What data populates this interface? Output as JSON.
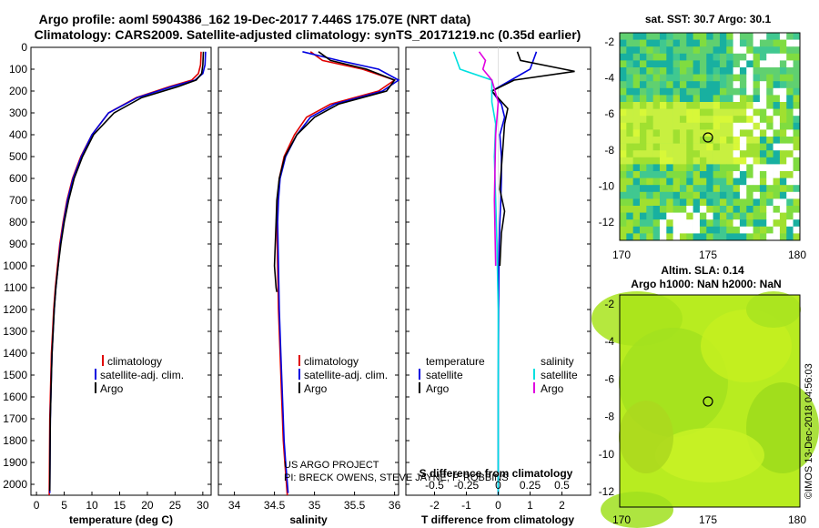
{
  "header": {
    "line1": "Argo profile: aoml 5904386_162 19-Dec-2017 7.446S 175.07E (NRT data)",
    "line2": "Climatology: CARS2009. Satellite-adjusted climatology: synTS_20171219.nc (0.35d earlier)"
  },
  "colors": {
    "climatology": "#e00000",
    "satellite": "#0000e0",
    "argo": "#000000",
    "sat_salinity": "#00e0e0",
    "argo_salinity": "#e000e0"
  },
  "depth_ticks": [
    "0",
    "100",
    "200",
    "300",
    "400",
    "500",
    "600",
    "700",
    "800",
    "900",
    "1000",
    "1100",
    "1200",
    "1300",
    "1400",
    "1500",
    "1600",
    "1700",
    "1800",
    "1900",
    "2000"
  ],
  "legends": {
    "panel1": [
      "climatology",
      "satellite-adj. clim.",
      "Argo"
    ],
    "panel2": [
      "climatology",
      "satellite-adj. clim.",
      "Argo"
    ],
    "panel3_left_title": "temperature",
    "panel3_left": [
      "satellite",
      "Argo"
    ],
    "panel3_right_title": "salinity",
    "panel3_right": [
      "satellite",
      "Argo"
    ]
  },
  "credit": {
    "line1": "US ARGO PROJECT",
    "line2": "PI: BRECK OWENS, STEVE JAYNE, P. ROBBINS"
  },
  "map1": {
    "title": "sat. SST: 30.7 Argo: 30.1"
  },
  "map2": {
    "title1": "Altim. SLA: 0.14",
    "title2": "Argo h1000: NaN h2000: NaN"
  },
  "map_ticks": {
    "x": [
      "170",
      "175",
      "180"
    ],
    "y1": [
      "-2",
      "-4",
      "-6",
      "-8",
      "-10",
      "-12"
    ],
    "y2": [
      "-2",
      "-4",
      "-6",
      "-8",
      "-10",
      "-12"
    ]
  },
  "timestamp": "©IMOS 13-Dec-2018 04:56:03",
  "chart_data": [
    {
      "type": "line",
      "title": "",
      "xlabel": "temperature (deg C)",
      "ylabel": "",
      "xlim": [
        -1,
        31.5
      ],
      "ylim": [
        2050,
        0
      ],
      "xticks": [
        "0",
        "5",
        "10",
        "15",
        "20",
        "25",
        "30"
      ],
      "series": [
        {
          "name": "climatology",
          "color": "#e00000",
          "x": [
            29.7,
            29.6,
            29.2,
            28,
            24,
            18,
            13,
            10,
            8,
            6.5,
            5.5,
            4.8,
            4.2,
            3.8,
            3.4,
            3.1,
            2.9,
            2.7,
            2.6,
            2.5,
            2.4,
            2.3
          ],
          "y": [
            20,
            80,
            120,
            150,
            180,
            230,
            300,
            400,
            500,
            600,
            700,
            800,
            900,
            1000,
            1100,
            1200,
            1300,
            1400,
            1500,
            1600,
            1700,
            2050
          ]
        },
        {
          "name": "satellite-adj. clim.",
          "color": "#0000e0",
          "x": [
            30.5,
            30.4,
            30.0,
            28.6,
            24.4,
            18.2,
            13,
            10,
            8.1,
            6.6,
            5.6,
            4.9,
            4.3,
            3.9,
            3.5,
            3.2,
            3,
            2.8,
            2.7,
            2.6,
            2.5,
            2.4
          ],
          "y": [
            20,
            80,
            120,
            150,
            180,
            230,
            300,
            400,
            500,
            600,
            700,
            800,
            900,
            1000,
            1100,
            1200,
            1300,
            1400,
            1500,
            1600,
            1700,
            2040
          ]
        },
        {
          "name": "Argo",
          "color": "#000000",
          "x": [
            30.1,
            30.0,
            29.8,
            28.8,
            25.5,
            19,
            14,
            10.3,
            8.3,
            6.8,
            5.8,
            5,
            4.4,
            3.9,
            3.5,
            3.2,
            3,
            2.8,
            2.7,
            2.6,
            2.5,
            2.4
          ],
          "y": [
            20,
            80,
            120,
            150,
            180,
            230,
            300,
            400,
            500,
            600,
            700,
            800,
            900,
            1000,
            1100,
            1200,
            1300,
            1400,
            1500,
            1600,
            1700,
            2030
          ]
        }
      ]
    },
    {
      "type": "line",
      "title": "",
      "xlabel": "salinity",
      "ylabel": "",
      "xlim": [
        33.8,
        36.05
      ],
      "ylim": [
        2050,
        0
      ],
      "xticks": [
        "34",
        "34.5",
        "35",
        "35.5",
        "36"
      ],
      "series": [
        {
          "name": "climatology",
          "color": "#e00000",
          "x": [
            34.95,
            35.1,
            35.6,
            36.0,
            35.8,
            35.2,
            34.9,
            34.75,
            34.62,
            34.56,
            34.54,
            34.53,
            34.54,
            34.55,
            34.57,
            34.59,
            34.61,
            34.63,
            34.66
          ],
          "y": [
            20,
            60,
            100,
            150,
            200,
            260,
            320,
            400,
            500,
            600,
            700,
            800,
            1000,
            1200,
            1400,
            1600,
            1800,
            1900,
            2050
          ]
        },
        {
          "name": "satellite-adj. clim.",
          "color": "#0000e0",
          "x": [
            34.85,
            35.3,
            35.8,
            36.05,
            35.85,
            35.25,
            34.95,
            34.78,
            34.64,
            34.57,
            34.55,
            34.54,
            34.55,
            34.56,
            34.58,
            34.6,
            34.62,
            34.64,
            34.67
          ],
          "y": [
            20,
            60,
            100,
            150,
            200,
            260,
            320,
            400,
            500,
            600,
            700,
            800,
            1000,
            1200,
            1400,
            1600,
            1800,
            1900,
            2040
          ]
        },
        {
          "name": "Argo",
          "color": "#000000",
          "x": [
            35.05,
            35.2,
            35.65,
            36.0,
            35.9,
            35.3,
            35.0,
            34.78,
            34.63,
            34.56,
            34.53,
            34.52,
            34.5,
            34.52,
            34.53
          ],
          "y": [
            20,
            60,
            100,
            150,
            200,
            260,
            320,
            400,
            500,
            600,
            700,
            800,
            1000,
            1100,
            1120
          ]
        }
      ]
    },
    {
      "type": "line",
      "title": "",
      "xlabel": "T difference from climatology",
      "x2label": "S difference from climatology",
      "ylabel": "",
      "xlim": [
        -2.9,
        2.9
      ],
      "x2lim": [
        -0.725,
        0.725
      ],
      "ylim": [
        2050,
        0
      ],
      "xticks": [
        "-2",
        "-1",
        "0",
        "1",
        "2"
      ],
      "x2ticks": [
        "-0.5",
        "-0.25",
        "0",
        "0.25",
        "0.5"
      ],
      "series": [
        {
          "name": "temperature satellite",
          "color": "#0000e0",
          "axis": "T",
          "x": [
            1.2,
            1.0,
            0.4,
            -0.2,
            0.1,
            0.2,
            0.05,
            0.1,
            0.1,
            0.08,
            0.05,
            0.03,
            0.02,
            0.01,
            0,
            0
          ],
          "y": [
            20,
            100,
            150,
            200,
            260,
            320,
            400,
            500,
            600,
            700,
            800,
            900,
            1000,
            1200,
            1600,
            2050
          ]
        },
        {
          "name": "temperature Argo",
          "color": "#000000",
          "axis": "T",
          "x": [
            0.6,
            0.7,
            2.4,
            0.5,
            -0.2,
            0.3,
            0.2,
            0.15,
            0.1,
            0.05,
            0.2,
            0.1,
            0.05
          ],
          "y": [
            20,
            60,
            110,
            150,
            200,
            280,
            350,
            450,
            550,
            650,
            750,
            850,
            1000
          ]
        },
        {
          "name": "salinity satellite",
          "color": "#00e0e0",
          "axis": "S",
          "x": [
            -0.35,
            -0.3,
            -0.05,
            -0.05,
            -0.02,
            -0.03,
            -0.02,
            -0.01,
            0,
            0
          ],
          "y": [
            20,
            100,
            150,
            250,
            350,
            500,
            700,
            900,
            1200,
            2050
          ]
        },
        {
          "name": "salinity Argo",
          "color": "#e000e0",
          "axis": "S",
          "x": [
            -0.15,
            -0.1,
            -0.12,
            -0.05,
            0,
            -0.02,
            -0.03,
            -0.02
          ],
          "y": [
            20,
            60,
            100,
            150,
            250,
            400,
            700,
            1000
          ]
        }
      ]
    }
  ]
}
